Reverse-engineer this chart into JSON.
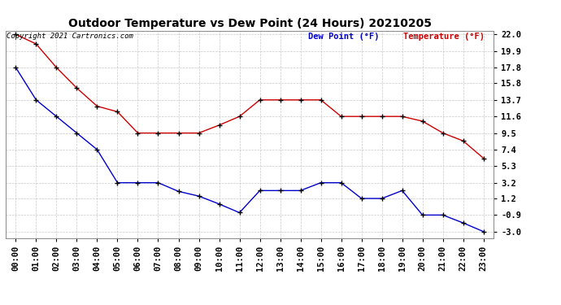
{
  "title": "Outdoor Temperature vs Dew Point (24 Hours) 20210205",
  "copyright": "Copyright 2021 Cartronics.com",
  "legend_dew": "Dew Point (°F)",
  "legend_temp": "Temperature (°F)",
  "hours": [
    "00:00",
    "01:00",
    "02:00",
    "03:00",
    "04:00",
    "05:00",
    "06:00",
    "07:00",
    "08:00",
    "09:00",
    "10:00",
    "11:00",
    "12:00",
    "13:00",
    "14:00",
    "15:00",
    "16:00",
    "17:00",
    "18:00",
    "19:00",
    "20:00",
    "21:00",
    "22:00",
    "23:00"
  ],
  "temperature": [
    22.0,
    20.8,
    17.8,
    15.2,
    12.9,
    12.2,
    9.5,
    9.5,
    9.5,
    9.5,
    10.5,
    11.6,
    13.7,
    13.7,
    13.7,
    13.7,
    11.6,
    11.6,
    11.6,
    11.6,
    11.0,
    9.5,
    8.5,
    6.3
  ],
  "dew_point": [
    17.8,
    13.7,
    11.6,
    9.5,
    7.4,
    3.2,
    3.2,
    3.2,
    2.1,
    1.5,
    0.5,
    -0.6,
    2.2,
    2.2,
    2.2,
    3.2,
    3.2,
    1.2,
    1.2,
    2.2,
    -0.9,
    -0.9,
    -1.9,
    -3.0
  ],
  "temp_color": "#cc0000",
  "dew_color": "#0000cc",
  "marker_color": "#000000",
  "background_color": "#ffffff",
  "grid_color": "#bbbbbb",
  "ylim_min": -3.8,
  "ylim_max": 22.5,
  "yticks": [
    22.0,
    19.9,
    17.8,
    15.8,
    13.7,
    11.6,
    9.5,
    7.4,
    5.3,
    3.2,
    1.2,
    -0.9,
    -3.0
  ],
  "title_fontsize": 10,
  "tick_fontsize": 7.5,
  "legend_fontsize": 7.5,
  "copyright_fontsize": 6.5
}
